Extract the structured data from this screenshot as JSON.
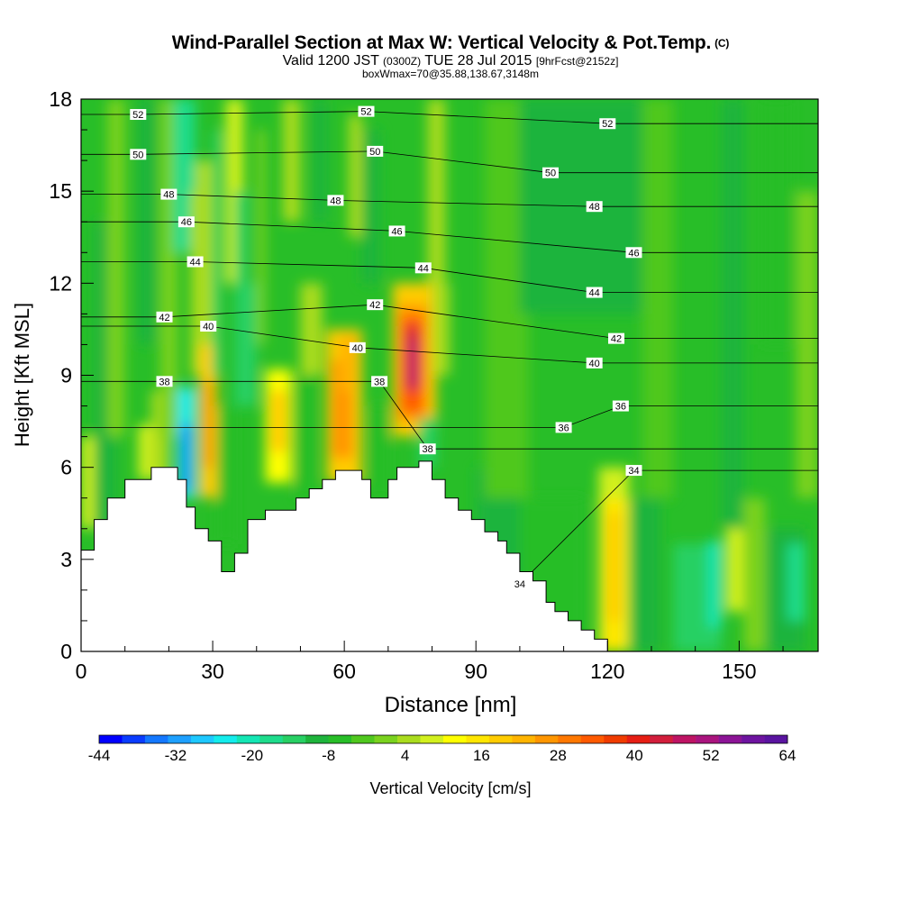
{
  "chart_data": {
    "type": "heatmap",
    "title": "Wind-Parallel Section at Max W: Vertical Velocity & Pot.Temp.",
    "copyright_mark": "(C)",
    "subtitle": {
      "valid": "Valid 1200 JST",
      "utc": "(0300Z)",
      "date": "TUE 28 Jul 2015",
      "forecast": "[9hrFcst@2152z]",
      "box": "boxWmax=70@35.88,138.67,3148m"
    },
    "xlabel": "Distance [nm]",
    "ylabel": "Height [Kft MSL]",
    "xlim": [
      0,
      168
    ],
    "ylim": [
      0,
      18
    ],
    "x_ticks": [
      0,
      30,
      60,
      90,
      120,
      150
    ],
    "y_ticks": [
      0,
      3,
      6,
      9,
      12,
      15,
      18
    ],
    "colorbar": {
      "label": "Vertical Velocity [cm/s]",
      "tick_labels": [
        "-44",
        "-32",
        "-20",
        "-8",
        "4",
        "16",
        "28",
        "40",
        "52",
        "64"
      ],
      "min": -44,
      "max": 64,
      "step": 4,
      "colors": [
        "#0000ff",
        "#0a3cff",
        "#1478ff",
        "#1ea0ff",
        "#1ec8ff",
        "#14ecec",
        "#14e6b4",
        "#1edc8c",
        "#28d064",
        "#1eb43c",
        "#28be28",
        "#50c81e",
        "#7ad21e",
        "#aadc1e",
        "#d2f01e",
        "#ffff00",
        "#ffe600",
        "#ffcc00",
        "#ffb400",
        "#ff9600",
        "#ff7800",
        "#ff5a00",
        "#f03c00",
        "#e61e14",
        "#d21e3c",
        "#be1464",
        "#aa147e",
        "#8c1496",
        "#6e14a0",
        "#5a14a0"
      ]
    },
    "theta_labels": [
      {
        "text": "52",
        "x": 13,
        "y": 17.5
      },
      {
        "text": "52",
        "x": 65,
        "y": 17.6
      },
      {
        "text": "52",
        "x": 120,
        "y": 17.2
      },
      {
        "text": "50",
        "x": 13,
        "y": 16.2
      },
      {
        "text": "50",
        "x": 67,
        "y": 16.3
      },
      {
        "text": "50",
        "x": 107,
        "y": 15.6
      },
      {
        "text": "48",
        "x": 20,
        "y": 14.9
      },
      {
        "text": "48",
        "x": 58,
        "y": 14.7
      },
      {
        "text": "48",
        "x": 117,
        "y": 14.5
      },
      {
        "text": "46",
        "x": 24,
        "y": 14.0
      },
      {
        "text": "46",
        "x": 72,
        "y": 13.7
      },
      {
        "text": "46",
        "x": 126,
        "y": 13.0
      },
      {
        "text": "44",
        "x": 26,
        "y": 12.7
      },
      {
        "text": "44",
        "x": 78,
        "y": 12.5
      },
      {
        "text": "44",
        "x": 117,
        "y": 11.7
      },
      {
        "text": "42",
        "x": 19,
        "y": 10.9
      },
      {
        "text": "42",
        "x": 67,
        "y": 11.3
      },
      {
        "text": "42",
        "x": 122,
        "y": 10.2
      },
      {
        "text": "40",
        "x": 29,
        "y": 10.6
      },
      {
        "text": "40",
        "x": 63,
        "y": 9.9
      },
      {
        "text": "40",
        "x": 117,
        "y": 9.4
      },
      {
        "text": "38",
        "x": 19,
        "y": 8.8
      },
      {
        "text": "38",
        "x": 68,
        "y": 8.8
      },
      {
        "text": "38",
        "x": 79,
        "y": 6.6
      },
      {
        "text": "36",
        "x": 123,
        "y": 8.0
      },
      {
        "text": "36",
        "x": 110,
        "y": 7.3
      },
      {
        "text": "34",
        "x": 126,
        "y": 5.9
      },
      {
        "text": "34",
        "x": 100,
        "y": 2.2
      }
    ],
    "cells": [
      {
        "x0": 0,
        "x1": 168,
        "y0": 0,
        "y1": 18,
        "v": -2
      },
      {
        "x0": 0,
        "x1": 3,
        "y0": 4,
        "y1": 7,
        "v": 14
      },
      {
        "x0": 3,
        "x1": 8,
        "y0": 4,
        "y1": 14,
        "v": -6
      },
      {
        "x0": 6,
        "x1": 10,
        "y0": 7,
        "y1": 18,
        "v": 6
      },
      {
        "x0": 13,
        "x1": 20,
        "y0": 5.6,
        "y1": 7.4,
        "v": 12
      },
      {
        "x0": 16,
        "x1": 20,
        "y0": 5.6,
        "y1": 8.5,
        "v": 10
      },
      {
        "x0": 13,
        "x1": 17,
        "y0": 10,
        "y1": 18,
        "v": -8
      },
      {
        "x0": 18,
        "x1": 22,
        "y0": 7,
        "y1": 18,
        "v": 6
      },
      {
        "x0": 21,
        "x1": 26,
        "y0": 13,
        "y1": 18,
        "v": -16
      },
      {
        "x0": 22,
        "x1": 26,
        "y0": 5,
        "y1": 8.6,
        "v": -24
      },
      {
        "x0": 23,
        "x1": 25,
        "y0": 5.2,
        "y1": 7.4,
        "v": -36
      },
      {
        "x0": 25,
        "x1": 27,
        "y0": 9,
        "y1": 15,
        "v": 8
      },
      {
        "x0": 27,
        "x1": 31,
        "y0": 5,
        "y1": 10,
        "v": 24
      },
      {
        "x0": 28,
        "x1": 30,
        "y0": 6,
        "y1": 8.8,
        "v": 34
      },
      {
        "x0": 26,
        "x1": 30,
        "y0": 10,
        "y1": 16,
        "v": 8
      },
      {
        "x0": 30,
        "x1": 32,
        "y0": 9,
        "y1": 17,
        "v": -10
      },
      {
        "x0": 31,
        "x1": 35,
        "y0": 3.5,
        "y1": 8,
        "v": -4
      },
      {
        "x0": 33,
        "x1": 37,
        "y0": 12,
        "y1": 18,
        "v": 12
      },
      {
        "x0": 35,
        "x1": 38,
        "y0": 8,
        "y1": 15,
        "v": -12
      },
      {
        "x0": 38,
        "x1": 40,
        "y0": 8,
        "y1": 12,
        "v": -12
      },
      {
        "x0": 40,
        "x1": 42,
        "y0": 10,
        "y1": 17,
        "v": 6
      },
      {
        "x0": 42,
        "x1": 48,
        "y0": 5.5,
        "y1": 9.2,
        "v": 18
      },
      {
        "x0": 43,
        "x1": 47,
        "y0": 6.5,
        "y1": 8.5,
        "v": 24
      },
      {
        "x0": 46,
        "x1": 50,
        "y0": 14,
        "y1": 18,
        "v": 8
      },
      {
        "x0": 49,
        "x1": 53,
        "y0": 5,
        "y1": 9,
        "v": -4
      },
      {
        "x0": 50,
        "x1": 55,
        "y0": 9,
        "y1": 12,
        "v": 8
      },
      {
        "x0": 53,
        "x1": 56,
        "y0": 14,
        "y1": 18,
        "v": -6
      },
      {
        "x0": 56,
        "x1": 64,
        "y0": 5.5,
        "y1": 10.5,
        "v": 24
      },
      {
        "x0": 57,
        "x1": 62,
        "y0": 6.3,
        "y1": 9.5,
        "v": 32
      },
      {
        "x0": 59,
        "x1": 63,
        "y0": 8.5,
        "y1": 10.3,
        "v": 30
      },
      {
        "x0": 61,
        "x1": 64,
        "y0": 13.5,
        "y1": 17.5,
        "v": 10
      },
      {
        "x0": 64,
        "x1": 68,
        "y0": 12,
        "y1": 17,
        "v": -6
      },
      {
        "x0": 66,
        "x1": 70,
        "y0": 5,
        "y1": 8,
        "v": -4
      },
      {
        "x0": 71,
        "x1": 81,
        "y0": 7,
        "y1": 12,
        "v": 24
      },
      {
        "x0": 72,
        "x1": 79,
        "y0": 7.5,
        "y1": 11.3,
        "v": 32
      },
      {
        "x0": 73,
        "x1": 78,
        "y0": 7.8,
        "y1": 10.9,
        "v": 42
      },
      {
        "x0": 74,
        "x1": 77,
        "y0": 8.5,
        "y1": 10.6,
        "v": 52
      },
      {
        "x0": 75,
        "x1": 76.5,
        "y0": 8.6,
        "y1": 10.2,
        "v": 62
      },
      {
        "x0": 80,
        "x1": 84,
        "y0": 9,
        "y1": 12,
        "v": 10
      },
      {
        "x0": 77,
        "x1": 81,
        "y0": 6,
        "y1": 7.6,
        "v": -10
      },
      {
        "x0": 79,
        "x1": 83,
        "y0": 12,
        "y1": 18,
        "v": 8
      },
      {
        "x0": 90,
        "x1": 100,
        "y0": 0,
        "y1": 6,
        "v": -8
      },
      {
        "x0": 100,
        "x1": 115,
        "y0": 0,
        "y1": 5,
        "v": -4
      },
      {
        "x0": 92,
        "x1": 102,
        "y0": 5,
        "y1": 18,
        "v": 2
      },
      {
        "x0": 100,
        "x1": 130,
        "y0": 11,
        "y1": 18,
        "v": -6
      },
      {
        "x0": 118,
        "x1": 125,
        "y0": 0,
        "y1": 6,
        "v": 14
      },
      {
        "x0": 119,
        "x1": 124,
        "y0": 0,
        "y1": 5,
        "v": 22
      },
      {
        "x0": 120,
        "x1": 123,
        "y0": 1,
        "y1": 4.5,
        "v": 26
      },
      {
        "x0": 125,
        "x1": 132,
        "y0": 0,
        "y1": 5,
        "v": -6
      },
      {
        "x0": 128,
        "x1": 135,
        "y0": 5,
        "y1": 18,
        "v": 2
      },
      {
        "x0": 135,
        "x1": 146,
        "y0": 0,
        "y1": 3.5,
        "v": -12
      },
      {
        "x0": 143,
        "x1": 146,
        "y0": 0.8,
        "y1": 3.6,
        "v": -18
      },
      {
        "x0": 147,
        "x1": 151,
        "y0": 1.3,
        "y1": 4,
        "v": 12
      },
      {
        "x0": 146,
        "x1": 151,
        "y0": 4,
        "y1": 18,
        "v": -8
      },
      {
        "x0": 151,
        "x1": 156,
        "y0": 0,
        "y1": 5,
        "v": 4
      },
      {
        "x0": 156,
        "x1": 165,
        "y0": 0,
        "y1": 4,
        "v": -8
      },
      {
        "x0": 161,
        "x1": 165,
        "y0": 1,
        "y1": 3.5,
        "v": -14
      },
      {
        "x0": 163,
        "x1": 168,
        "y0": 5,
        "y1": 15,
        "v": 6
      },
      {
        "x0": 155,
        "x1": 162,
        "y0": 10,
        "y1": 18,
        "v": -4
      }
    ],
    "terrain": [
      [
        0,
        3.3
      ],
      [
        3,
        3.3
      ],
      [
        3,
        4.3
      ],
      [
        6,
        4.3
      ],
      [
        6,
        5.0
      ],
      [
        10,
        5.0
      ],
      [
        10,
        5.6
      ],
      [
        16,
        5.6
      ],
      [
        16,
        6.0
      ],
      [
        22,
        6.0
      ],
      [
        22,
        5.6
      ],
      [
        24,
        5.6
      ],
      [
        24,
        4.7
      ],
      [
        26,
        4.7
      ],
      [
        26,
        4.0
      ],
      [
        29,
        4.0
      ],
      [
        29,
        3.6
      ],
      [
        32,
        3.6
      ],
      [
        32,
        2.6
      ],
      [
        35,
        2.6
      ],
      [
        35,
        3.2
      ],
      [
        38,
        3.2
      ],
      [
        38,
        4.3
      ],
      [
        42,
        4.3
      ],
      [
        42,
        4.6
      ],
      [
        49,
        4.6
      ],
      [
        49,
        5.0
      ],
      [
        52,
        5.0
      ],
      [
        52,
        5.3
      ],
      [
        55,
        5.3
      ],
      [
        55,
        5.6
      ],
      [
        58,
        5.6
      ],
      [
        58,
        5.9
      ],
      [
        64,
        5.9
      ],
      [
        64,
        5.6
      ],
      [
        66,
        5.6
      ],
      [
        66,
        5.0
      ],
      [
        70,
        5.0
      ],
      [
        70,
        5.6
      ],
      [
        72,
        5.6
      ],
      [
        72,
        6.0
      ],
      [
        77,
        6.0
      ],
      [
        77,
        6.2
      ],
      [
        80,
        6.2
      ],
      [
        80,
        5.6
      ],
      [
        83,
        5.6
      ],
      [
        83,
        5.0
      ],
      [
        86,
        5.0
      ],
      [
        86,
        4.6
      ],
      [
        89,
        4.6
      ],
      [
        89,
        4.3
      ],
      [
        92,
        4.3
      ],
      [
        92,
        3.9
      ],
      [
        95,
        3.9
      ],
      [
        95,
        3.6
      ],
      [
        97,
        3.6
      ],
      [
        97,
        3.2
      ],
      [
        100,
        3.2
      ],
      [
        100,
        2.6
      ],
      [
        103,
        2.6
      ],
      [
        103,
        2.3
      ],
      [
        106,
        2.3
      ],
      [
        106,
        1.6
      ],
      [
        108,
        1.6
      ],
      [
        108,
        1.3
      ],
      [
        111,
        1.3
      ],
      [
        111,
        1.0
      ],
      [
        114,
        1.0
      ],
      [
        114,
        0.7
      ],
      [
        117,
        0.7
      ],
      [
        117,
        0.4
      ],
      [
        120,
        0.4
      ],
      [
        120,
        0.0
      ]
    ]
  }
}
